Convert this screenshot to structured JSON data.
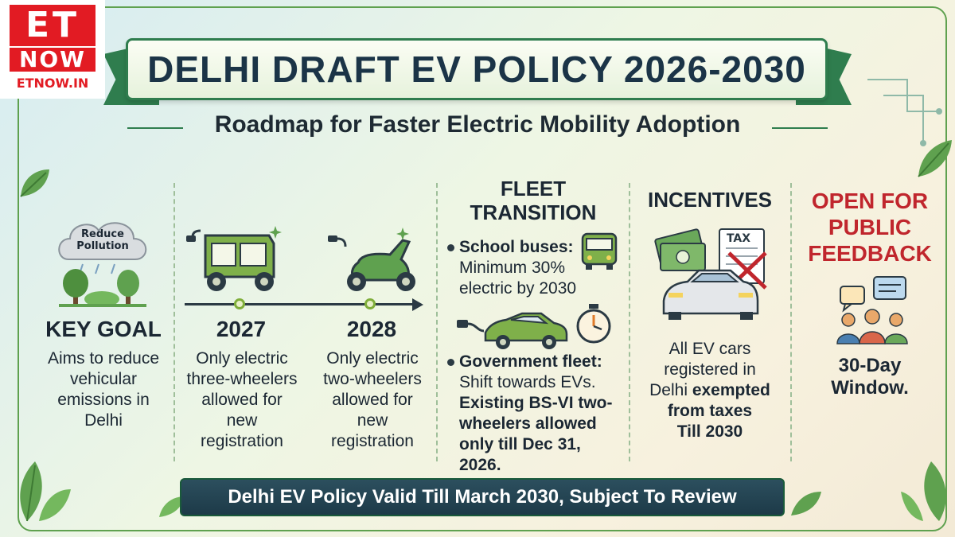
{
  "logo": {
    "line1": "ET",
    "line2": "NOW",
    "url": "ETNOW.IN"
  },
  "title": "DELHI DRAFT EV POLICY 2026-2030",
  "subtitle": "Roadmap for Faster Electric Mobility Adoption",
  "key_goal": {
    "cloud_label_1": "Reduce",
    "cloud_label_2": "Pollution",
    "heading": "KEY GOAL",
    "text": [
      "Aims to reduce",
      "vehicular",
      "emissions in",
      "Delhi"
    ]
  },
  "timeline": [
    {
      "year": "2027",
      "text": [
        "Only electric",
        "three-wheelers",
        "allowed for",
        "new",
        "registration"
      ]
    },
    {
      "year": "2028",
      "text": [
        "Only electric",
        "two-wheelers",
        "allowed for",
        "new",
        "registration"
      ]
    }
  ],
  "fleet": {
    "heading_1": "FLEET",
    "heading_2": "TRANSITION",
    "school_label": "School buses:",
    "school_text": [
      "Minimum 30%",
      "electric by 2030"
    ],
    "gov_label": "Government fleet:",
    "gov_text": [
      "Shift towards EVs.",
      "Existing BS-VI two-",
      "wheelers allowed",
      "only till Dec 31,",
      "2026."
    ]
  },
  "incentives": {
    "heading": "INCENTIVES",
    "tax_label": "TAX",
    "text_1": "All EV cars",
    "text_2": "registered in",
    "text_3": "Delhi",
    "text_3_bold": "exempted",
    "text_4": "from taxes",
    "text_5": "Till 2030"
  },
  "feedback": {
    "heading": [
      "OPEN FOR",
      "PUBLIC",
      "FEEDBACK"
    ],
    "window_1": "30-Day",
    "window_2": "Window."
  },
  "footer": "Delhi EV Policy Valid Till March 2030, Subject To Review",
  "colors": {
    "brand_red": "#e21b23",
    "accent_green": "#2f7d4e",
    "heading_red": "#c0262d",
    "footer_bg": "#1d3a48"
  }
}
